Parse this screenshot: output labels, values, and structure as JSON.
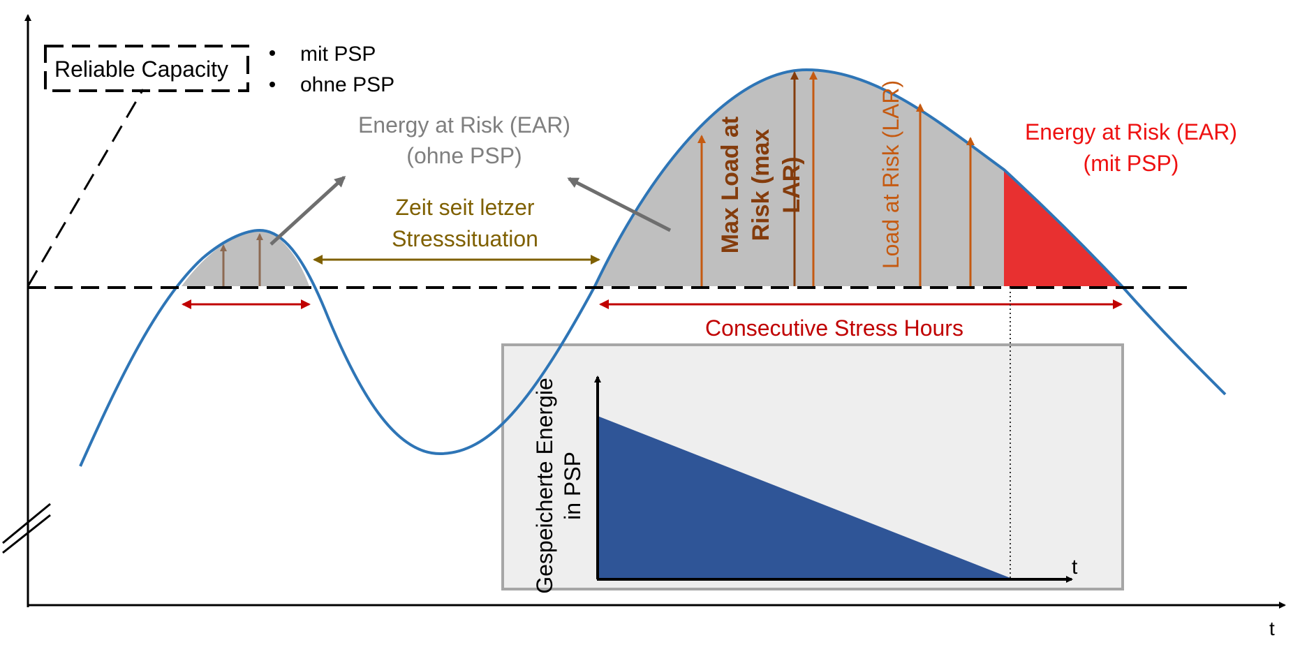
{
  "legend": {
    "box_label": "Reliable Capacity",
    "bullet_1": "mit PSP",
    "bullet_2": "ohne PSP"
  },
  "annotations": {
    "ear_ohne_line1": "Energy at Risk (EAR)",
    "ear_ohne_line2": "(ohne PSP)",
    "zeit_line1": "Zeit seit letzer",
    "zeit_line2": "Stresssituation",
    "max_lar_line1": "Max Load at",
    "max_lar_line2": "Risk (max",
    "max_lar_line3": "LAR)",
    "lar": "Load at Risk (LAR)",
    "ear_mit_line1": "Energy at Risk (EAR)",
    "ear_mit_line2": "(mit PSP)",
    "consecutive": "Consecutive Stress Hours"
  },
  "axes": {
    "x_label": "t"
  },
  "inset": {
    "y_label_line1": "Gespeicherte Energie",
    "y_label_line2": "in PSP",
    "x_label": "t"
  },
  "colors": {
    "curve": "#2e75b6",
    "risk_fill": "#bfbfbf",
    "ear_mit_fill": "#e83030",
    "arrow_orange": "#c55a11",
    "arrow_brown": "#843c0c",
    "arrow_small": "#8c6a52",
    "olive": "#7f6000",
    "dark_red": "#c00000",
    "grey_text": "#7f7f7f",
    "inset_bg": "#ececec",
    "inset_border": "#a6a6a6",
    "storage_fill": "#2f5597"
  }
}
